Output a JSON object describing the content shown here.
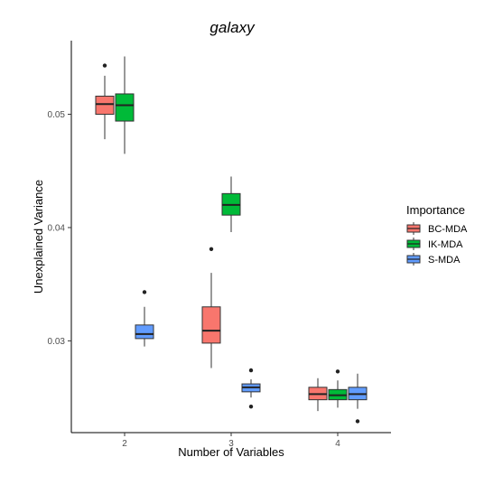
{
  "chart_data": {
    "type": "boxplot",
    "title": "galaxy",
    "xlabel": "Number of Variables",
    "ylabel": "Unexplained Variance",
    "categories": [
      "2",
      "3",
      "4"
    ],
    "yticks": [
      "0.03",
      "0.04",
      "0.05"
    ],
    "ylim": [
      0.0219,
      0.0565
    ],
    "grid": false,
    "legend": {
      "title": "Importance",
      "position": "right",
      "entries": [
        "BC-MDA",
        "IK-MDA",
        "S-MDA"
      ]
    },
    "series": [
      {
        "name": "BC-MDA",
        "color": "#F8766D",
        "boxes": [
          {
            "category": "2",
            "whisker_low": 0.0478,
            "q1": 0.05,
            "median": 0.0509,
            "q3": 0.0516,
            "whisker_high": 0.0534,
            "outliers": [
              0.0543
            ]
          },
          {
            "category": "3",
            "whisker_low": 0.0276,
            "q1": 0.0298,
            "median": 0.0309,
            "q3": 0.033,
            "whisker_high": 0.036,
            "outliers": [
              0.0381
            ]
          },
          {
            "category": "4",
            "whisker_low": 0.0238,
            "q1": 0.0248,
            "median": 0.0253,
            "q3": 0.0259,
            "whisker_high": 0.0267,
            "outliers": []
          }
        ]
      },
      {
        "name": "IK-MDA",
        "color": "#00BA38",
        "boxes": [
          {
            "category": "2",
            "whisker_low": 0.0465,
            "q1": 0.0494,
            "median": 0.0508,
            "q3": 0.0518,
            "whisker_high": 0.0551,
            "outliers": []
          },
          {
            "category": "3",
            "whisker_low": 0.0396,
            "q1": 0.0411,
            "median": 0.042,
            "q3": 0.043,
            "whisker_high": 0.0445,
            "outliers": []
          },
          {
            "category": "4",
            "whisker_low": 0.0241,
            "q1": 0.0248,
            "median": 0.0252,
            "q3": 0.0257,
            "whisker_high": 0.0265,
            "outliers": [
              0.0273
            ]
          }
        ]
      },
      {
        "name": "S-MDA",
        "color": "#619CFF",
        "boxes": [
          {
            "category": "2",
            "whisker_low": 0.0295,
            "q1": 0.0302,
            "median": 0.0306,
            "q3": 0.0314,
            "whisker_high": 0.033,
            "outliers": [
              0.0343
            ]
          },
          {
            "category": "3",
            "whisker_low": 0.025,
            "q1": 0.0255,
            "median": 0.0259,
            "q3": 0.0262,
            "whisker_high": 0.0266,
            "outliers": [
              0.0274,
              0.0242
            ]
          },
          {
            "category": "4",
            "whisker_low": 0.024,
            "q1": 0.0248,
            "median": 0.0253,
            "q3": 0.0259,
            "whisker_high": 0.0271,
            "outliers": [
              0.0229
            ]
          }
        ]
      }
    ]
  }
}
